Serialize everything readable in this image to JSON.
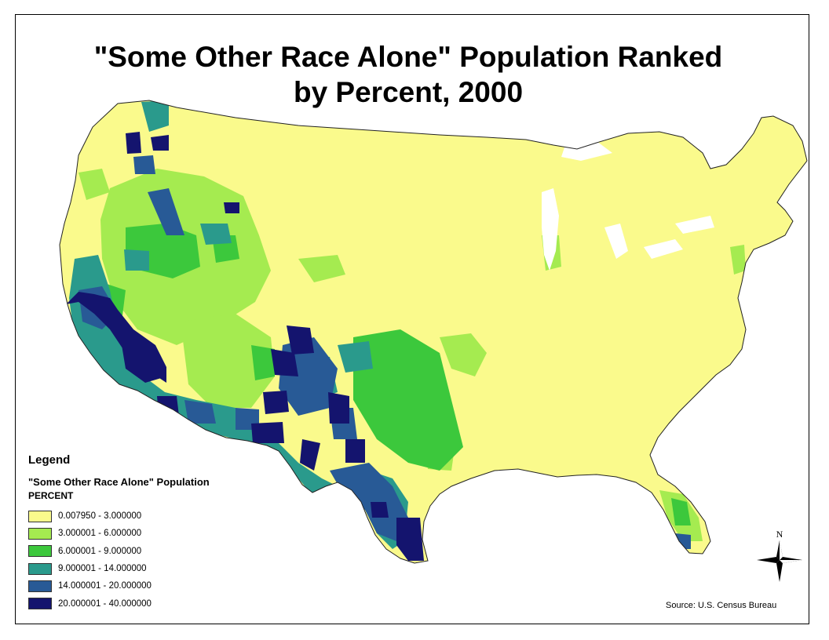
{
  "title": {
    "line1": "\"Some Other Race Alone\" Population Ranked",
    "line2": "by Percent, 2000"
  },
  "legend": {
    "heading": "Legend",
    "layer": "\"Some Other Race Alone\" Population",
    "field": "PERCENT",
    "classes": [
      {
        "label": "0.007950 - 3.000000",
        "color": "#fafa8c"
      },
      {
        "label": "3.000001 - 6.000000",
        "color": "#a5eb50"
      },
      {
        "label": "6.000001 - 9.000000",
        "color": "#3cc83c"
      },
      {
        "label": "9.000001 - 14.000000",
        "color": "#2a9a8c"
      },
      {
        "label": "14.000001 - 20.000000",
        "color": "#285a96"
      },
      {
        "label": "20.000001 - 40.000000",
        "color": "#14146e"
      }
    ]
  },
  "north_arrow": {
    "letter": "N"
  },
  "source": "Source: U.S. Census Bureau"
}
